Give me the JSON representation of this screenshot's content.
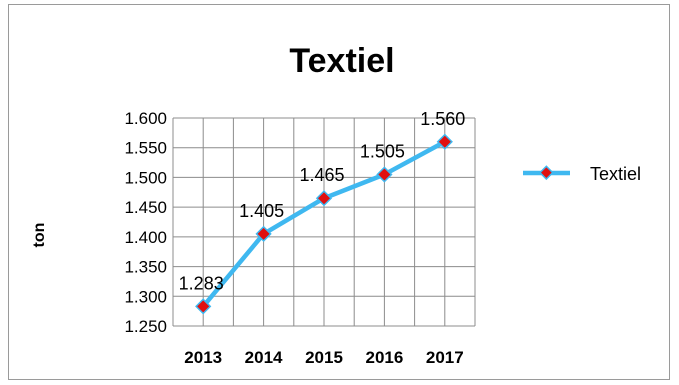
{
  "chart_data": {
    "type": "line",
    "title": "Textiel",
    "xlabel": "",
    "ylabel": "ton",
    "categories": [
      "2013",
      "2014",
      "2015",
      "2016",
      "2017"
    ],
    "series": [
      {
        "name": "Textiel",
        "values": [
          1283,
          1405,
          1465,
          1505,
          1560
        ],
        "data_labels": [
          "1.283",
          "1.405",
          "1.465",
          "1.505",
          "1.560"
        ],
        "color": "#3fb8f0",
        "marker_color": "#e01010"
      }
    ],
    "ylim": [
      1250,
      1600
    ],
    "yticks": [
      1250,
      1300,
      1350,
      1400,
      1450,
      1500,
      1550,
      1600
    ],
    "ytick_labels": [
      "1.250",
      "1.300",
      "1.350",
      "1.400",
      "1.450",
      "1.500",
      "1.550",
      "1.600"
    ],
    "grid": true,
    "legend_position": "right"
  }
}
